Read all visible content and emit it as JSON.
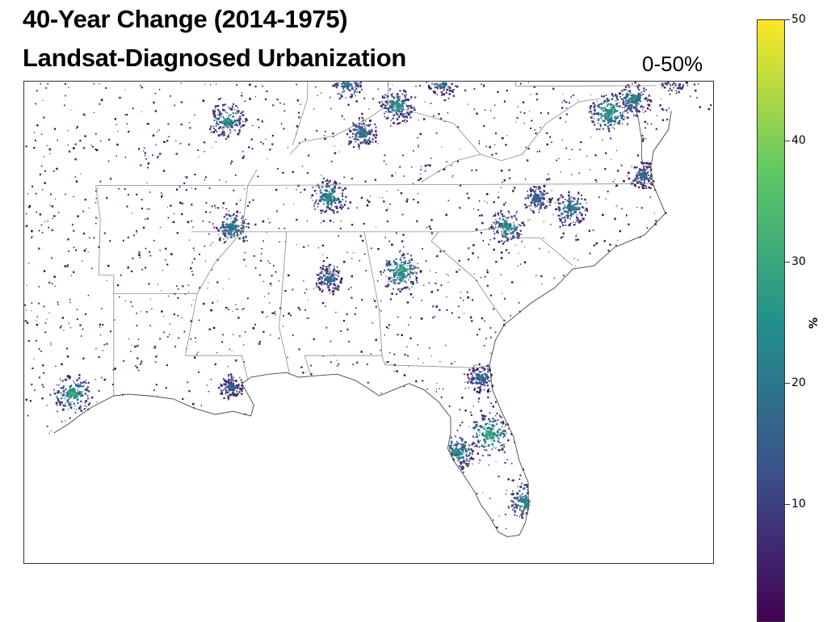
{
  "title_line1": "40-Year Change (2014-1975)",
  "title_line2": "Landsat-Diagnosed Urbanization",
  "range_label": "0-50%",
  "colorbar": {
    "min": 0,
    "max": 50,
    "unit": "%",
    "colormap": "viridis",
    "ticks": [
      "50",
      "40",
      "30",
      "20",
      "10"
    ],
    "colors": [
      "#440154",
      "#3b528b",
      "#21918c",
      "#5ec962",
      "#fde725"
    ]
  },
  "map": {
    "region": "Southeastern United States",
    "hotspots": [
      {
        "lon": -90.2,
        "lat": 38.6,
        "value": 30
      },
      {
        "lon": -86.2,
        "lat": 39.8,
        "value": 25
      },
      {
        "lon": -84.5,
        "lat": 39.1,
        "value": 30
      },
      {
        "lon": -82.99,
        "lat": 39.96,
        "value": 28
      },
      {
        "lon": -77.4,
        "lat": 38.9,
        "value": 35
      },
      {
        "lon": -76.6,
        "lat": 39.3,
        "value": 28
      },
      {
        "lon": -75.2,
        "lat": 39.95,
        "value": 22
      },
      {
        "lon": -85.7,
        "lat": 38.2,
        "value": 25
      },
      {
        "lon": -86.8,
        "lat": 36.15,
        "value": 30
      },
      {
        "lon": -84.4,
        "lat": 33.75,
        "value": 35
      },
      {
        "lon": -80.85,
        "lat": 35.2,
        "value": 30
      },
      {
        "lon": -78.7,
        "lat": 35.8,
        "value": 28
      },
      {
        "lon": -79.8,
        "lat": 36.1,
        "value": 22
      },
      {
        "lon": -81.7,
        "lat": 30.3,
        "value": 22
      },
      {
        "lon": -81.4,
        "lat": 28.5,
        "value": 38
      },
      {
        "lon": -82.5,
        "lat": 27.9,
        "value": 30
      },
      {
        "lon": -80.2,
        "lat": 26.3,
        "value": 30
      },
      {
        "lon": -95.4,
        "lat": 29.8,
        "value": 35
      },
      {
        "lon": -90.05,
        "lat": 35.15,
        "value": 28
      },
      {
        "lon": -86.8,
        "lat": 33.5,
        "value": 22
      },
      {
        "lon": -90.1,
        "lat": 30.0,
        "value": 18
      },
      {
        "lon": -76.3,
        "lat": 36.85,
        "value": 22
      }
    ],
    "state_lines": [
      {
        "points": [
          [
            -89.55,
            36.5
          ],
          [
            -75.9,
            36.55
          ]
        ]
      },
      {
        "points": [
          [
            -94.6,
            36.5
          ],
          [
            -89.6,
            36.5
          ]
        ]
      },
      {
        "points": [
          [
            -91.4,
            35.0
          ],
          [
            -82.0,
            35.0
          ],
          [
            -81.0,
            35.15
          ],
          [
            -80.8,
            34.8
          ],
          [
            -79.7,
            34.8
          ],
          [
            -78.6,
            33.9
          ]
        ]
      },
      {
        "points": [
          [
            -88.2,
            35.0
          ],
          [
            -88.45,
            31.9
          ],
          [
            -88.1,
            30.4
          ]
        ]
      },
      {
        "points": [
          [
            -85.6,
            35.0
          ],
          [
            -85.1,
            32.5
          ],
          [
            -85.0,
            31.0
          ],
          [
            -87.6,
            31.0
          ],
          [
            -87.4,
            30.4
          ]
        ]
      },
      {
        "points": [
          [
            -85.0,
            31.0
          ],
          [
            -84.9,
            30.7
          ],
          [
            -81.7,
            30.6
          ],
          [
            -81.45,
            30.7
          ]
        ]
      },
      {
        "points": [
          [
            -83.1,
            35.0
          ],
          [
            -83.35,
            34.7
          ],
          [
            -81.9,
            33.5
          ],
          [
            -80.9,
            32.1
          ]
        ]
      },
      {
        "points": [
          [
            -91.6,
            31.0
          ],
          [
            -89.7,
            31.0
          ],
          [
            -89.5,
            30.2
          ]
        ]
      },
      {
        "points": [
          [
            -94.0,
            33.0
          ],
          [
            -91.2,
            33.0
          ]
        ]
      },
      {
        "points": [
          [
            -94.5,
            33.6
          ],
          [
            -94.0,
            33.6
          ],
          [
            -94.0,
            29.7
          ]
        ]
      },
      {
        "points": [
          [
            -94.6,
            36.5
          ],
          [
            -94.45,
            35.4
          ],
          [
            -94.5,
            33.6
          ]
        ]
      },
      {
        "points": [
          [
            -89.5,
            36.5
          ],
          [
            -89.7,
            35.0
          ],
          [
            -90.6,
            34.0
          ],
          [
            -91.2,
            33.0
          ],
          [
            -91.6,
            31.0
          ]
        ]
      },
      {
        "points": [
          [
            -88.1,
            37.5
          ],
          [
            -87.7,
            37.9
          ],
          [
            -86.6,
            38.1
          ],
          [
            -85.4,
            38.7
          ],
          [
            -84.8,
            39.1
          ],
          [
            -82.6,
            38.5
          ],
          [
            -81.7,
            37.5
          ]
        ]
      },
      {
        "points": [
          [
            -81.7,
            37.5
          ],
          [
            -81.0,
            37.3
          ],
          [
            -80.3,
            37.5
          ],
          [
            -79.5,
            38.5
          ],
          [
            -78.4,
            39.2
          ],
          [
            -77.7,
            39.3
          ]
        ]
      },
      {
        "points": [
          [
            -81.7,
            37.5
          ],
          [
            -82.5,
            37.3
          ],
          [
            -83.7,
            36.6
          ]
        ]
      },
      {
        "points": [
          [
            -84.8,
            39.1
          ],
          [
            -84.8,
            41.5
          ]
        ]
      },
      {
        "points": [
          [
            -88.0,
            37.8
          ],
          [
            -87.5,
            39.3
          ],
          [
            -87.5,
            41.5
          ]
        ]
      },
      {
        "points": [
          [
            -80.52,
            39.7
          ],
          [
            -75.8,
            39.72
          ]
        ]
      },
      {
        "points": [
          [
            -80.52,
            39.7
          ],
          [
            -80.52,
            41.5
          ]
        ]
      },
      {
        "points": [
          [
            -89.2,
            37.0
          ],
          [
            -89.5,
            36.5
          ]
        ]
      }
    ],
    "coastline": [
      [
        -75.3,
        38.9
      ],
      [
        -75.4,
        38.3
      ],
      [
        -75.9,
        37.6
      ],
      [
        -76.0,
        37.0
      ],
      [
        -75.9,
        36.5
      ],
      [
        -75.5,
        35.6
      ],
      [
        -76.2,
        34.9
      ],
      [
        -77.2,
        34.5
      ],
      [
        -77.9,
        33.9
      ],
      [
        -78.6,
        33.8
      ],
      [
        -79.2,
        33.2
      ],
      [
        -80.0,
        32.7
      ],
      [
        -80.9,
        32.0
      ],
      [
        -81.2,
        31.5
      ],
      [
        -81.4,
        30.7
      ],
      [
        -81.3,
        29.9
      ],
      [
        -81.0,
        29.2
      ],
      [
        -80.6,
        28.4
      ],
      [
        -80.4,
        27.6
      ],
      [
        -80.1,
        26.9
      ],
      [
        -80.1,
        26.1
      ],
      [
        -80.2,
        25.6
      ],
      [
        -80.4,
        25.2
      ],
      [
        -80.8,
        25.15
      ],
      [
        -81.1,
        25.3
      ],
      [
        -81.4,
        25.8
      ],
      [
        -81.7,
        26.2
      ],
      [
        -81.9,
        26.6
      ],
      [
        -82.3,
        27.2
      ],
      [
        -82.6,
        27.6
      ],
      [
        -82.8,
        28.0
      ],
      [
        -82.7,
        28.5
      ],
      [
        -82.7,
        29.0
      ],
      [
        -83.1,
        29.5
      ],
      [
        -83.6,
        29.9
      ],
      [
        -84.1,
        30.1
      ],
      [
        -84.6,
        29.9
      ],
      [
        -85.1,
        29.7
      ],
      [
        -85.4,
        29.9
      ],
      [
        -85.9,
        30.2
      ],
      [
        -86.5,
        30.4
      ],
      [
        -87.2,
        30.35
      ],
      [
        -87.8,
        30.3
      ],
      [
        -88.2,
        30.45
      ],
      [
        -88.8,
        30.4
      ],
      [
        -89.4,
        30.3
      ],
      [
        -89.7,
        30.1
      ],
      [
        -89.3,
        29.4
      ],
      [
        -89.4,
        29.05
      ],
      [
        -90.0,
        29.2
      ],
      [
        -90.6,
        29.1
      ],
      [
        -91.3,
        29.3
      ],
      [
        -92.0,
        29.6
      ],
      [
        -92.8,
        29.7
      ],
      [
        -93.5,
        29.75
      ],
      [
        -94.0,
        29.7
      ],
      [
        -94.7,
        29.35
      ],
      [
        -95.1,
        29.1
      ],
      [
        -95.5,
        28.8
      ],
      [
        -96.0,
        28.5
      ]
    ],
    "chesapeake": [
      [
        -76.4,
        39.5
      ],
      [
        -76.5,
        39.0
      ],
      [
        -76.4,
        38.6
      ],
      [
        -76.3,
        38.0
      ],
      [
        -76.3,
        37.4
      ],
      [
        -76.2,
        37.0
      ]
    ]
  }
}
